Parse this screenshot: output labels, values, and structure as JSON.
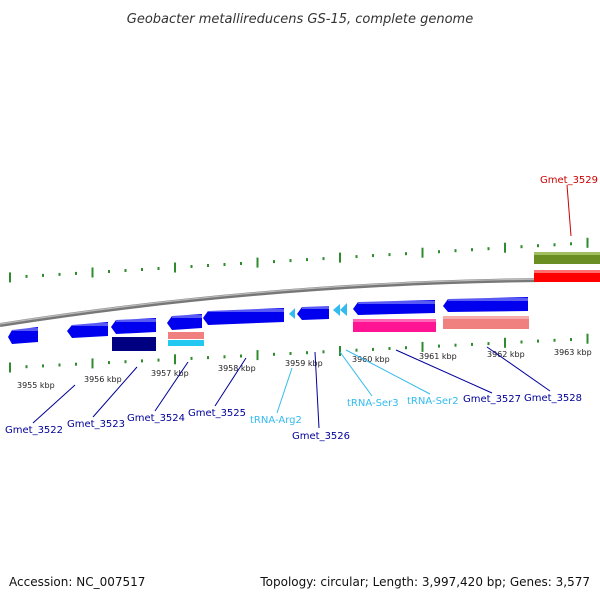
{
  "title": "Geobacter metallireducens GS-15, complete genome",
  "footer": {
    "accession": "Accession: NC_007517",
    "topology": "Topology: circular; Length: 3,997,420 bp; Genes: 3,577"
  },
  "colors": {
    "gene": "#0000ee",
    "trna": "#33bbee",
    "cds_dark": "#000080",
    "cds_pink": "#ff1493",
    "cds_salmon": "#f08080",
    "cds_cyan": "#22c8f0",
    "gene_top_green": "#6b8e23",
    "gene_top_red": "#ff0000",
    "label_gene": "#000099",
    "label_trna": "#33bbee",
    "label_top": "#cc0000",
    "tick": "#2e8b2e",
    "backbone": "#888888"
  },
  "scale_labels": [
    "3955 kbp",
    "3956 kbp",
    "3957 kbp",
    "3958 kbp",
    "3959 kbp",
    "3960 kbp",
    "3961 kbp",
    "3962 kbp",
    "3963 kbp"
  ],
  "labels": [
    {
      "id": "gmet-3522",
      "text": "Gmet_3522",
      "kind": "gene"
    },
    {
      "id": "gmet-3523",
      "text": "Gmet_3523",
      "kind": "gene"
    },
    {
      "id": "gmet-3524",
      "text": "Gmet_3524",
      "kind": "gene"
    },
    {
      "id": "gmet-3525",
      "text": "Gmet_3525",
      "kind": "gene"
    },
    {
      "id": "trna-arg2",
      "text": "tRNA-Arg2",
      "kind": "trna"
    },
    {
      "id": "gmet-3526",
      "text": "Gmet_3526",
      "kind": "gene"
    },
    {
      "id": "trna-ser3",
      "text": "tRNA-Ser3",
      "kind": "trna"
    },
    {
      "id": "trna-ser2",
      "text": "tRNA-Ser2",
      "kind": "trna"
    },
    {
      "id": "gmet-3527",
      "text": "Gmet_3527",
      "kind": "gene"
    },
    {
      "id": "gmet-3528",
      "text": "Gmet_3528",
      "kind": "gene"
    },
    {
      "id": "gmet-3529",
      "text": "Gmet_3529",
      "kind": "top"
    }
  ]
}
